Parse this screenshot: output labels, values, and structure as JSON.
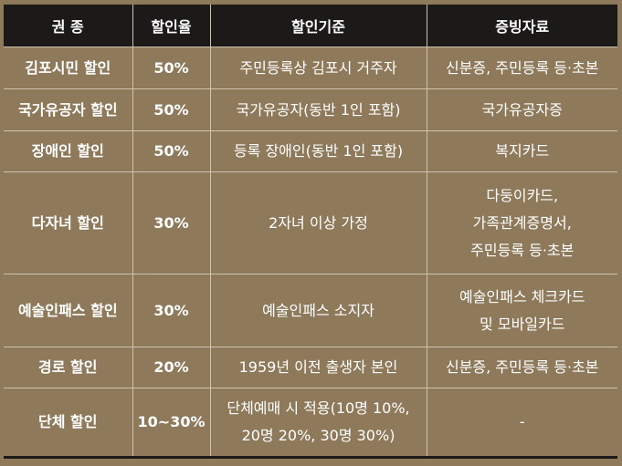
{
  "table": {
    "header": [
      "권  종",
      "할인율",
      "할인기준",
      "증빙자료"
    ],
    "rows": [
      [
        "김포시민 할인",
        "50%",
        [
          "주민등록상 김포시 거주자"
        ],
        [
          "신분증,  주민등록 등·초본"
        ]
      ],
      [
        "국가유공자 할인",
        "50%",
        [
          "국가유공자(동반 1인 포함)"
        ],
        [
          "국가유공자증"
        ]
      ],
      [
        "장애인 할인",
        "50%",
        [
          "등록 장애인(동반 1인 포함)"
        ],
        [
          "복지카드"
        ]
      ],
      [
        "다자녀 할인",
        "30%",
        [
          "2자녀 이상 가정"
        ],
        [
          "다둥이카드,",
          "가족관계증명서,",
          "주민등록 등·초본"
        ]
      ],
      [
        "예술인패스 할인",
        "30%",
        [
          "예술인패스 소지자"
        ],
        [
          "예술인패스 체크카드",
          "및 모바일카드"
        ]
      ],
      [
        "경로 할인",
        "20%",
        [
          "1959년 이전 출생자 본인"
        ],
        [
          "신분증,  주민등록 등·초본"
        ]
      ],
      [
        "단체 할인",
        "10~30%",
        [
          "단체예매 시 적용(10명 10%,",
          "20명 20%, 30명 30%)"
        ],
        [
          "-"
        ]
      ]
    ]
  }
}
